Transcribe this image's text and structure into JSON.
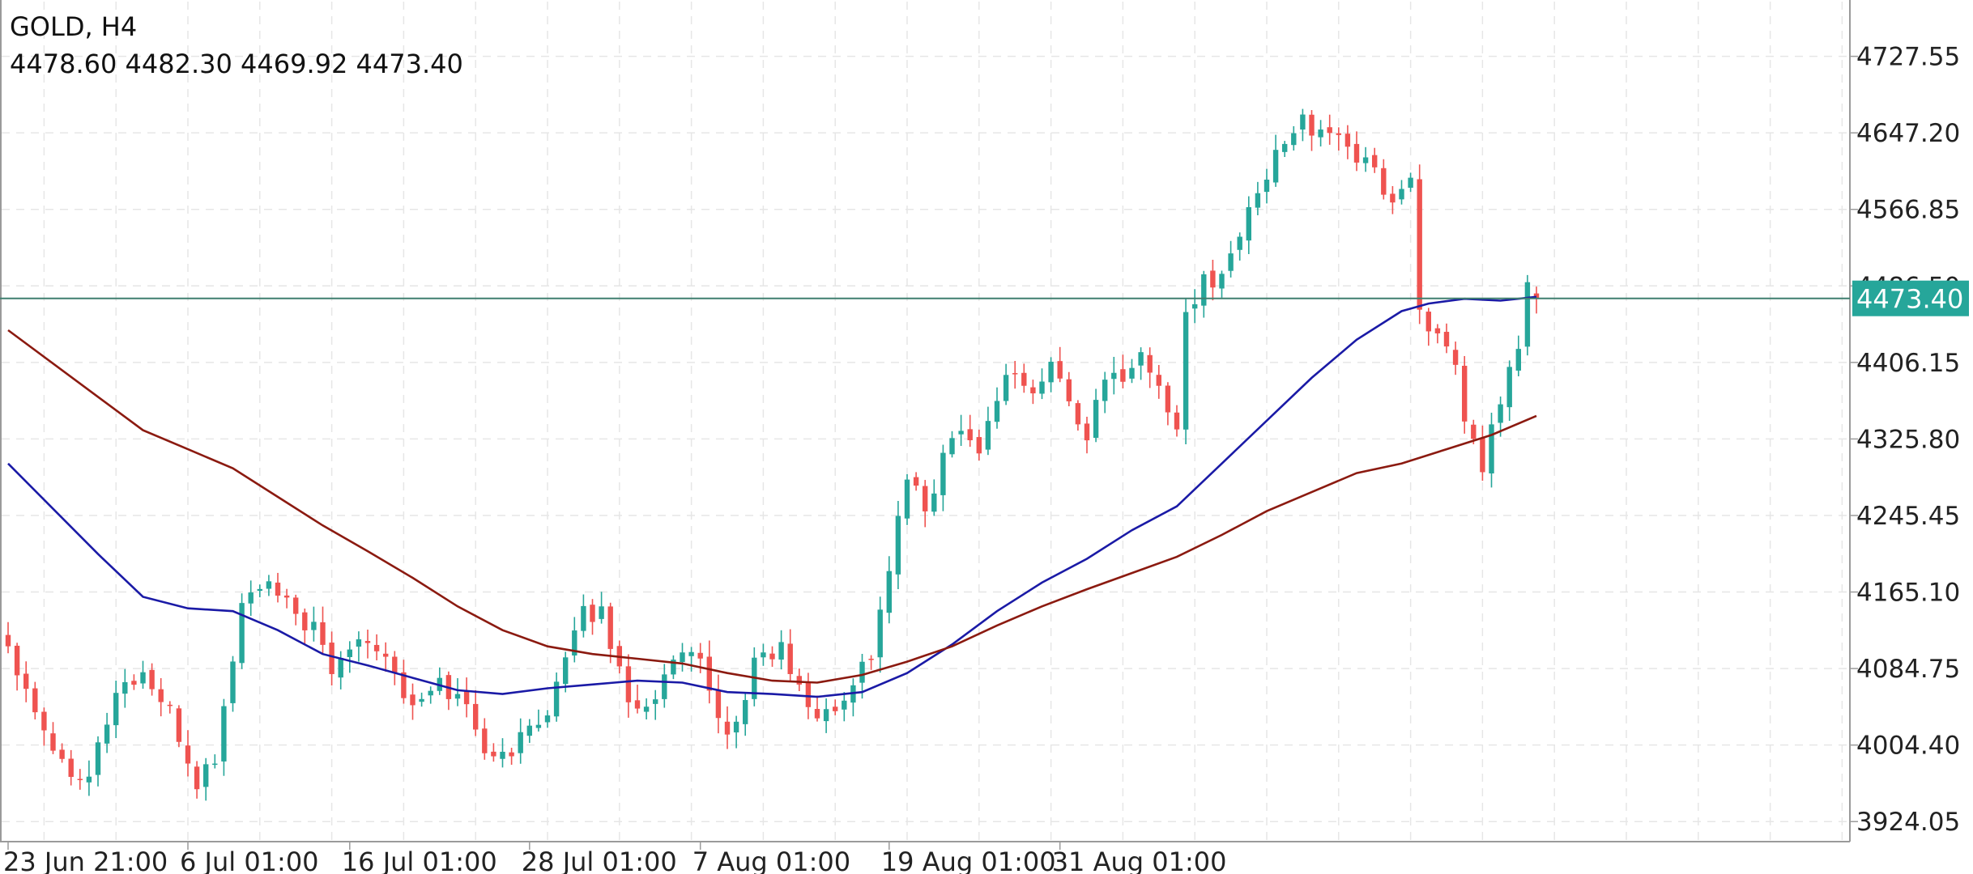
{
  "header": {
    "symbol_timeframe": "GOLD, H4",
    "ohlc": "4478.60 4482.30 4469.92 4473.40"
  },
  "price_tag": {
    "text": "4473.40",
    "value": 4473.4,
    "color": "#26a69a"
  },
  "colors": {
    "bull": "#26a69a",
    "bear": "#ef5350",
    "ma_fast": "#1a1aa6",
    "ma_slow": "#8b1a10",
    "grid": "#e6e6e6",
    "border": "#9a9a9a",
    "price_line": "#3f7f6f"
  },
  "chart_data": {
    "type": "candlestick",
    "symbol": "GOLD",
    "timeframe": "H4",
    "grid": true,
    "y_ticks": [
      "4727.55",
      "4647.20",
      "4566.85",
      "4486.50",
      "4406.15",
      "4325.80",
      "4245.45",
      "4165.10",
      "4084.75",
      "4004.40",
      "3924.05"
    ],
    "y_tick_values": [
      4727.55,
      4647.2,
      4566.85,
      4486.5,
      4406.15,
      4325.8,
      4245.45,
      4165.1,
      4084.75,
      4004.4,
      3924.05
    ],
    "ylim": [
      3903,
      4785
    ],
    "x_ticks": [
      "23 Jun 21:00",
      "6 Jul 01:00",
      "16 Jul 01:00",
      "28 Jul 01:00",
      "7 Aug 01:00",
      "19 Aug 01:00",
      "31 Aug 01:00"
    ],
    "x_tick_bar_index": [
      0,
      20,
      38,
      58,
      77,
      98,
      117
    ],
    "total_bars_in_view": 171,
    "close_anchors": [
      [
        0,
        4110
      ],
      [
        3,
        4045
      ],
      [
        6,
        3985
      ],
      [
        9,
        3975
      ],
      [
        12,
        4060
      ],
      [
        15,
        4080
      ],
      [
        18,
        4035
      ],
      [
        21,
        3965
      ],
      [
        23,
        3990
      ],
      [
        26,
        4150
      ],
      [
        28,
        4175
      ],
      [
        31,
        4150
      ],
      [
        34,
        4125
      ],
      [
        36,
        4080
      ],
      [
        39,
        4125
      ],
      [
        42,
        4100
      ],
      [
        45,
        4040
      ],
      [
        48,
        4070
      ],
      [
        51,
        4045
      ],
      [
        54,
        3985
      ],
      [
        57,
        4010
      ],
      [
        60,
        4045
      ],
      [
        64,
        4140
      ],
      [
        66,
        4145
      ],
      [
        68,
        4080
      ],
      [
        70,
        4040
      ],
      [
        72,
        4060
      ],
      [
        75,
        4100
      ],
      [
        77,
        4085
      ],
      [
        79,
        4030
      ],
      [
        81,
        4020
      ],
      [
        83,
        4095
      ],
      [
        86,
        4105
      ],
      [
        88,
        4060
      ],
      [
        90,
        4035
      ],
      [
        92,
        4040
      ],
      [
        94,
        4075
      ],
      [
        96,
        4100
      ],
      [
        98,
        4190
      ],
      [
        100,
        4285
      ],
      [
        102,
        4250
      ],
      [
        104,
        4305
      ],
      [
        106,
        4345
      ],
      [
        108,
        4310
      ],
      [
        110,
        4375
      ],
      [
        112,
        4400
      ],
      [
        114,
        4370
      ],
      [
        116,
        4405
      ],
      [
        118,
        4365
      ],
      [
        120,
        4330
      ],
      [
        122,
        4385
      ],
      [
        124,
        4395
      ],
      [
        126,
        4415
      ],
      [
        128,
        4380
      ],
      [
        130,
        4340
      ],
      [
        131,
        4450
      ],
      [
        133,
        4505
      ],
      [
        134,
        4480
      ],
      [
        136,
        4520
      ],
      [
        138,
        4560
      ],
      [
        140,
        4600
      ],
      [
        142,
        4645
      ],
      [
        144,
        4665
      ],
      [
        146,
        4640
      ],
      [
        148,
        4650
      ],
      [
        150,
        4620
      ],
      [
        152,
        4605
      ],
      [
        154,
        4575
      ],
      [
        156,
        4600
      ],
      [
        157,
        4465
      ],
      [
        159,
        4430
      ],
      [
        161,
        4395
      ],
      [
        162,
        4345
      ],
      [
        164,
        4295
      ],
      [
        166,
        4370
      ],
      [
        168,
        4420
      ],
      [
        169,
        4490
      ],
      [
        170,
        4473.4
      ]
    ],
    "series": [
      {
        "name": "",
        "style": "blue line",
        "points": [
          [
            0,
            4300
          ],
          [
            10,
            4205
          ],
          [
            15,
            4160
          ],
          [
            20,
            4148
          ],
          [
            25,
            4145
          ],
          [
            30,
            4125
          ],
          [
            35,
            4100
          ],
          [
            40,
            4088
          ],
          [
            45,
            4075
          ],
          [
            50,
            4062
          ],
          [
            55,
            4058
          ],
          [
            60,
            4064
          ],
          [
            65,
            4068
          ],
          [
            70,
            4072
          ],
          [
            75,
            4070
          ],
          [
            80,
            4060
          ],
          [
            85,
            4058
          ],
          [
            90,
            4055
          ],
          [
            95,
            4060
          ],
          [
            100,
            4080
          ],
          [
            105,
            4110
          ],
          [
            110,
            4145
          ],
          [
            115,
            4175
          ],
          [
            120,
            4200
          ],
          [
            125,
            4230
          ],
          [
            130,
            4255
          ],
          [
            135,
            4300
          ],
          [
            140,
            4345
          ],
          [
            145,
            4390
          ],
          [
            150,
            4430
          ],
          [
            155,
            4460
          ],
          [
            158,
            4468
          ],
          [
            162,
            4473
          ],
          [
            166,
            4471
          ],
          [
            170,
            4475
          ]
        ]
      },
      {
        "name": "",
        "style": "dark red line",
        "points": [
          [
            0,
            4440
          ],
          [
            10,
            4370
          ],
          [
            15,
            4335
          ],
          [
            20,
            4315
          ],
          [
            25,
            4295
          ],
          [
            30,
            4265
          ],
          [
            35,
            4235
          ],
          [
            40,
            4208
          ],
          [
            45,
            4180
          ],
          [
            50,
            4150
          ],
          [
            55,
            4125
          ],
          [
            60,
            4108
          ],
          [
            65,
            4100
          ],
          [
            70,
            4095
          ],
          [
            75,
            4090
          ],
          [
            80,
            4080
          ],
          [
            85,
            4072
          ],
          [
            90,
            4070
          ],
          [
            95,
            4078
          ],
          [
            100,
            4092
          ],
          [
            105,
            4108
          ],
          [
            110,
            4130
          ],
          [
            115,
            4150
          ],
          [
            120,
            4168
          ],
          [
            125,
            4185
          ],
          [
            130,
            4202
          ],
          [
            135,
            4225
          ],
          [
            140,
            4250
          ],
          [
            145,
            4270
          ],
          [
            150,
            4290
          ],
          [
            155,
            4300
          ],
          [
            160,
            4315
          ],
          [
            165,
            4330
          ],
          [
            170,
            4350
          ]
        ]
      }
    ]
  }
}
